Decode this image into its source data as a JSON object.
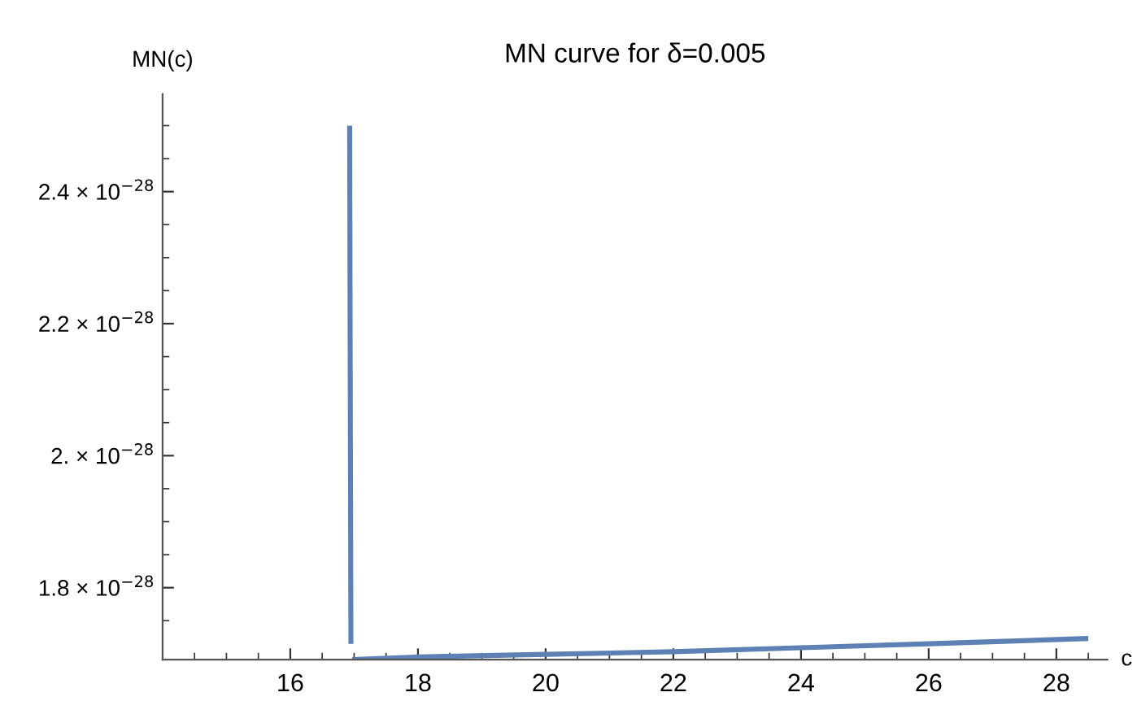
{
  "chart_data": {
    "type": "line",
    "title": "MN curve for δ=0.005",
    "xlabel": "c",
    "ylabel": "MN(c)",
    "x": [
      16.93,
      16.95,
      16.96,
      16.97,
      18,
      20,
      22,
      24,
      26,
      28.5
    ],
    "series": [
      {
        "color": "#5e81b5",
        "values": [
          2.5e-28,
          1.715e-28,
          null,
          1.691e-28,
          1.695e-28,
          1.699e-28,
          1.703e-28,
          1.709e-28,
          1.715e-28,
          1.723e-28
        ]
      }
    ],
    "xlim": [
      14,
      28.8
    ],
    "ylim": [
      1.691e-28,
      2.548e-28
    ],
    "xticks": [
      {
        "value": 14.5,
        "label": null
      },
      {
        "value": 15,
        "label": null
      },
      {
        "value": 15.5,
        "label": null
      },
      16,
      {
        "value": 16.5,
        "label": null
      },
      {
        "value": 17,
        "label": null
      },
      {
        "value": 17.5,
        "label": null
      },
      18,
      {
        "value": 18.5,
        "label": null
      },
      {
        "value": 19,
        "label": null
      },
      {
        "value": 19.5,
        "label": null
      },
      20,
      {
        "value": 20.5,
        "label": null
      },
      {
        "value": 21,
        "label": null
      },
      {
        "value": 21.5,
        "label": null
      },
      22,
      {
        "value": 22.5,
        "label": null
      },
      {
        "value": 23,
        "label": null
      },
      {
        "value": 23.5,
        "label": null
      },
      24,
      {
        "value": 24.5,
        "label": null
      },
      {
        "value": 25,
        "label": null
      },
      {
        "value": 25.5,
        "label": null
      },
      26,
      {
        "value": 26.5,
        "label": null
      },
      {
        "value": 27,
        "label": null
      },
      {
        "value": 27.5,
        "label": null
      },
      28,
      {
        "value": 28.5,
        "label": null
      }
    ],
    "yticks": [
      {
        "value": 1.75e-28,
        "label": null
      },
      {
        "value": 1.8e-28,
        "label": "1.8 × 10$^{−28}$"
      },
      {
        "value": 1.85e-28,
        "label": null
      },
      {
        "value": 1.9e-28,
        "label": null
      },
      {
        "value": 1.95e-28,
        "label": null
      },
      {
        "value": 2e-28,
        "label": "2. × 10$^{−28}$"
      },
      {
        "value": 2.05e-28,
        "label": null
      },
      {
        "value": 2.1e-28,
        "label": null
      },
      {
        "value": 2.15e-28,
        "label": null
      },
      {
        "value": 2.2e-28,
        "label": "2.2 × 10$^{−28}$"
      },
      {
        "value": 2.25e-28,
        "label": null
      },
      {
        "value": 2.3e-28,
        "label": null
      },
      {
        "value": 2.35e-28,
        "label": null
      },
      {
        "value": 2.4e-28,
        "label": "2.4 × 10$^{−28}$"
      },
      {
        "value": 2.45e-28,
        "label": null
      },
      {
        "value": 2.5e-28,
        "label": null
      }
    ],
    "marker": "none",
    "line_style": "solid"
  }
}
